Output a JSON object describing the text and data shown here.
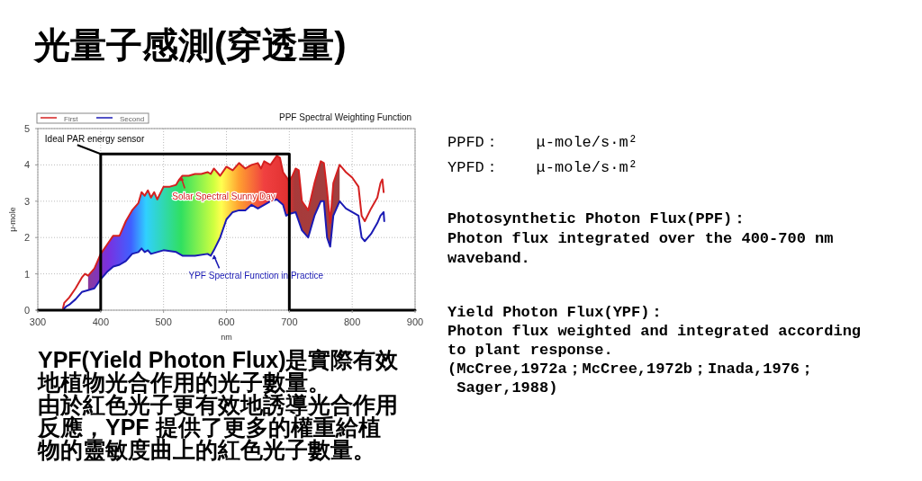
{
  "chart_data": {
    "type": "line",
    "title": "光量子感測(穿透量)",
    "subtitle": "PPF Spectral Weighting Function",
    "xlabel": "nm",
    "ylabel": "μ-mole",
    "xlim": [
      300,
      900
    ],
    "xticks": [
      300,
      400,
      500,
      600,
      700,
      800,
      900
    ],
    "ylim": [
      0,
      5
    ],
    "yticks": [
      0,
      1,
      2,
      3,
      4,
      5
    ],
    "grid": true,
    "legend": "top left",
    "line_style": "solid",
    "marker": "none",
    "series": [
      {
        "name": "First",
        "color": "#d42020",
        "x": [
          340,
          342,
          350,
          360,
          370,
          375,
          380,
          390,
          400,
          410,
          420,
          430,
          440,
          450,
          460,
          465,
          470,
          475,
          480,
          485,
          490,
          500,
          510,
          520,
          525,
          530,
          540,
          550,
          560,
          570,
          575,
          580,
          590,
          600,
          610,
          620,
          630,
          640,
          650,
          655,
          660,
          670,
          680,
          685,
          690,
          700,
          705,
          710,
          715,
          720,
          730,
          740,
          750,
          755,
          760,
          765,
          770,
          780,
          785,
          790,
          800,
          810,
          815,
          820,
          830,
          840,
          845,
          848,
          850
        ],
        "values": [
          0.05,
          0.2,
          0.35,
          0.6,
          0.9,
          1.0,
          0.95,
          1.15,
          1.55,
          1.8,
          2.05,
          2.05,
          2.45,
          2.75,
          2.95,
          3.25,
          3.15,
          3.3,
          3.1,
          3.25,
          3.05,
          3.4,
          3.4,
          3.45,
          3.6,
          3.7,
          3.7,
          3.75,
          3.75,
          3.8,
          3.75,
          3.9,
          3.7,
          3.95,
          3.85,
          4.05,
          3.9,
          4.0,
          4.05,
          3.9,
          4.1,
          4.0,
          4.25,
          4.2,
          3.8,
          3.55,
          3.7,
          3.9,
          3.85,
          3.0,
          2.75,
          3.5,
          4.1,
          4.05,
          3.3,
          2.4,
          3.5,
          4.0,
          3.9,
          3.8,
          3.65,
          3.4,
          2.6,
          2.45,
          2.8,
          3.1,
          3.5,
          3.6,
          3.25
        ]
      },
      {
        "name": "Second",
        "color": "#1a1ab4",
        "x": [
          342,
          345,
          350,
          360,
          370,
          380,
          390,
          400,
          410,
          420,
          430,
          440,
          450,
          460,
          465,
          470,
          475,
          480,
          490,
          500,
          520,
          530,
          550,
          570,
          575,
          580,
          590,
          600,
          610,
          620,
          630,
          640,
          650,
          660,
          670,
          680,
          690,
          695,
          700,
          710,
          720,
          730,
          740,
          750,
          755,
          760,
          765,
          770,
          780,
          790,
          800,
          810,
          815,
          820,
          830,
          840,
          845,
          850,
          851
        ],
        "values": [
          0.05,
          0.1,
          0.15,
          0.3,
          0.5,
          0.55,
          0.6,
          0.85,
          1.05,
          1.2,
          1.25,
          1.35,
          1.55,
          1.6,
          1.7,
          1.6,
          1.65,
          1.55,
          1.6,
          1.65,
          1.6,
          1.5,
          1.5,
          1.55,
          1.5,
          1.65,
          2.0,
          2.5,
          2.7,
          2.75,
          2.75,
          2.9,
          2.8,
          2.9,
          3.0,
          3.05,
          2.9,
          2.6,
          2.65,
          2.7,
          2.2,
          2.0,
          2.6,
          3.0,
          3.0,
          2.0,
          1.75,
          2.6,
          3.0,
          2.8,
          2.7,
          2.6,
          2.0,
          1.9,
          2.1,
          2.4,
          2.6,
          2.7,
          2.45
        ]
      },
      {
        "color": "#000000",
        "x": [
          300,
          400,
          400,
          700,
          700,
          900
        ],
        "values": [
          0,
          0,
          4.3,
          4.3,
          0,
          0
        ]
      }
    ],
    "annotations": [
      "PPFD：    μ-mole/s·m²",
      "YPFD：    μ-mole/s·m²",
      "Photosynthetic Photon Flux(PPF)：\nPhoton flux integrated over the 400-700 nm\nwaveband.",
      "Yield Photon Flux(YPF)：\nPhoton flux weighted and integrated according\nto plant response.\n(McCree,1972a；McCree,1972b；Inada,1976；\n Sager,1988)",
      "YPF(Yield Photon Flux)是實際有效地植物光合作用的光子數量。",
      "由於紅色光子更有效地誘導光合作用反應，YPF 提供了更多的權重給植物的靈敏度曲上的紅色光子數量。",
      {
        "text": "Ideal PAR energy sensor",
        "x": 400,
        "y": 4.3
      },
      {
        "text": "Solar Spectral Sunny Day",
        "x": 528,
        "y": 3.7
      },
      {
        "text": "YPF Spectral Function in Practice",
        "x": 580,
        "y": 1.55
      }
    ]
  }
}
